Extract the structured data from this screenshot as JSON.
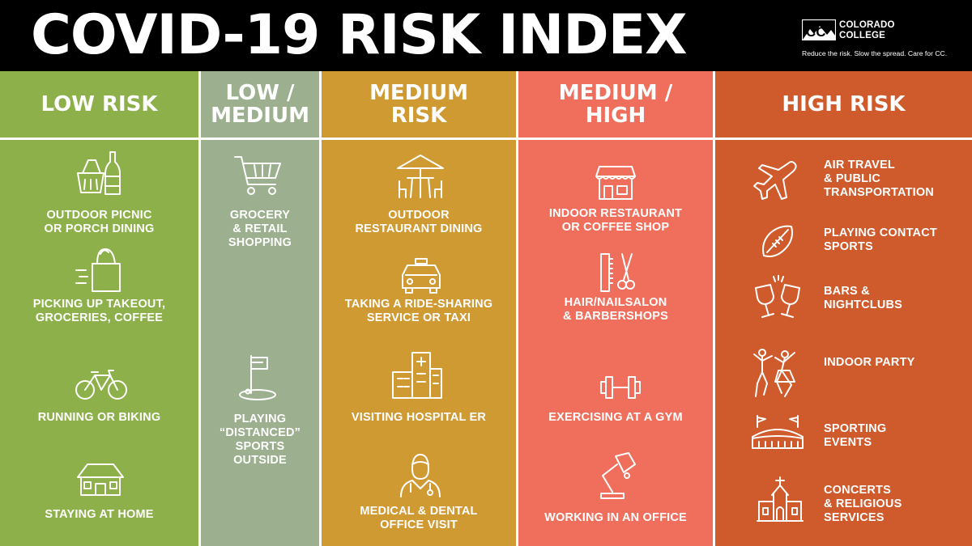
{
  "header": {
    "title": "COVID-19 RISK INDEX",
    "brand_name": "COLORADO\nCOLLEGE",
    "brand_logo_text": "CC",
    "tagline": "Reduce the risk. Slow the spread. Care for CC."
  },
  "colors": {
    "low": "#8db04a",
    "low_medium": "#9caf8e",
    "medium": "#d09a33",
    "medium_high": "#ef6f5c",
    "high": "#cf5a2c",
    "header_bg": "#000000",
    "rule": "#ffffff"
  },
  "columns": [
    {
      "heading": "LOW RISK",
      "activities": [
        {
          "label": "OUTDOOR PICNIC\nOR PORCH DINING",
          "icon": "picnic-basket-wine-icon"
        },
        {
          "label": "PICKING UP TAKEOUT,\nGROCERIES, COFFEE",
          "icon": "grocery-bag-icon"
        },
        {
          "label": "RUNNING OR BIKING",
          "icon": "bicycle-icon"
        },
        {
          "label": "STAYING AT HOME",
          "icon": "house-icon"
        }
      ]
    },
    {
      "heading": "LOW /\nMEDIUM",
      "activities": [
        {
          "label": "GROCERY\n& RETAIL\nSHOPPING",
          "icon": "shopping-cart-icon"
        },
        {
          "label": "PLAYING\n“DISTANCED”\nSPORTS\nOUTSIDE",
          "icon": "golf-flag-icon"
        }
      ]
    },
    {
      "heading": "MEDIUM\nRISK",
      "activities": [
        {
          "label": "OUTDOOR\nRESTAURANT DINING",
          "icon": "patio-umbrella-table-icon"
        },
        {
          "label": "TAKING A RIDE-SHARING\nSERVICE OR TAXI",
          "icon": "taxi-icon"
        },
        {
          "label": "VISITING HOSPITAL ER",
          "icon": "hospital-icon"
        },
        {
          "label": "MEDICAL & DENTAL\nOFFICE VISIT",
          "icon": "doctor-icon"
        }
      ]
    },
    {
      "heading": "MEDIUM /\nHIGH",
      "activities": [
        {
          "label": "INDOOR RESTAURANT\nOR COFFEE SHOP",
          "icon": "storefront-icon"
        },
        {
          "label": "HAIR/NAILSALON\n& BARBERSHOPS",
          "icon": "comb-scissors-icon"
        },
        {
          "label": "EXERCISING AT A GYM",
          "icon": "dumbbell-icon"
        },
        {
          "label": "WORKING IN AN OFFICE",
          "icon": "desk-lamp-icon"
        }
      ]
    },
    {
      "heading": "HIGH RISK",
      "activities": [
        {
          "label": "AIR TRAVEL\n& PUBLIC\nTRANSPORTATION",
          "icon": "airplane-icon"
        },
        {
          "label": "PLAYING CONTACT\nSPORTS",
          "icon": "football-icon"
        },
        {
          "label": "BARS &\nNIGHTCLUBS",
          "icon": "cheers-glasses-icon"
        },
        {
          "label": "INDOOR PARTY",
          "icon": "dancing-people-icon"
        },
        {
          "label": "SPORTING\nEVENTS",
          "icon": "stadium-icon"
        },
        {
          "label": "CONCERTS\n& RELIGIOUS\nSERVICES",
          "icon": "church-icon"
        }
      ]
    }
  ]
}
